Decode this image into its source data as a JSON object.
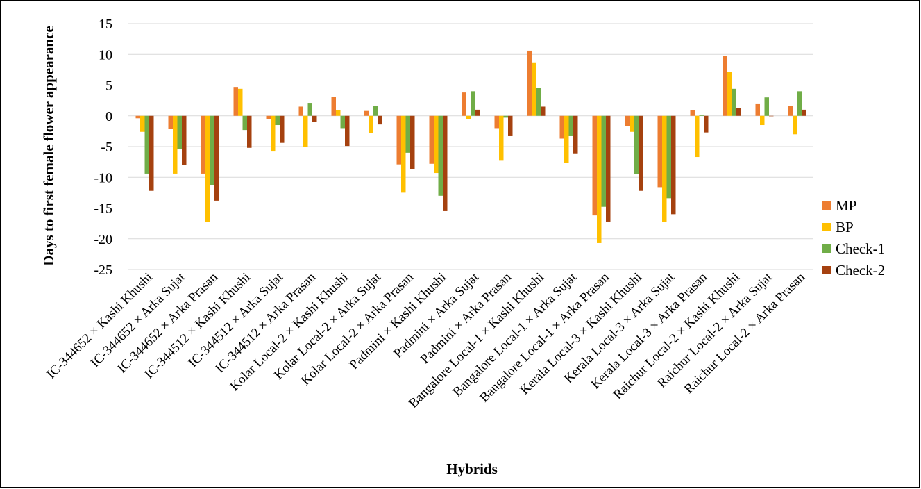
{
  "chart_data": {
    "type": "bar",
    "title": "",
    "xlabel": "Hybrids",
    "ylabel": "Days to first female flower appearance",
    "ylim": [
      -25,
      15
    ],
    "yticks": [
      15,
      10,
      5,
      0,
      -5,
      -10,
      -15,
      -20,
      -25
    ],
    "grid": true,
    "legend_position": "right",
    "categories": [
      "IC-344652 × Kashi Khushi",
      "IC-344652 × Arka Sujat",
      "IC-344652 × Arka Prasan",
      "IC-344512 × Kashi Khushi",
      "IC-344512 × Arka Sujat",
      "IC-344512 × Arka Prasan",
      "Kolar Local-2 × Kashi Khushi",
      "Kolar Local-2 × Arka Sujat",
      "Kolar Local-2 × Arka Prasan",
      "Padmini × Kashi Khushi",
      "Padmini × Arka Sujat",
      "Padmini × Arka Prasan",
      "Bangalore Local-1 × Kashi Khushi",
      "Bangalore Local-1 × Arka Sujat",
      "Bangalore Local-1 × Arka Prasan",
      "Kerala Local-3 × Kashi Khushi",
      "Kerala Local-3 × Arka Sujat",
      "Kerala Local-3 × Arka Prasan",
      "Raichur Local-2 × Kashi Khushi",
      "Raichur Local-2 × Arka Sujat",
      "Raichur Local-2 × Arka Prasan"
    ],
    "series": [
      {
        "name": "MP",
        "color": "#ED7D31",
        "values": [
          -0.4,
          -2.1,
          -9.4,
          4.7,
          -0.5,
          1.5,
          3.1,
          0.8,
          -7.9,
          -7.8,
          3.8,
          -2.0,
          10.6,
          -3.7,
          -16.2,
          -1.7,
          -11.6,
          0.9,
          9.7,
          1.9,
          1.6
        ]
      },
      {
        "name": "BP",
        "color": "#FFC000",
        "values": [
          -2.6,
          -9.4,
          -17.3,
          4.4,
          -5.8,
          -5.0,
          0.9,
          -2.8,
          -12.5,
          -9.3,
          -0.5,
          -7.3,
          8.7,
          -7.6,
          -20.7,
          -2.6,
          -17.3,
          -6.7,
          7.1,
          -1.5,
          -3.0
        ]
      },
      {
        "name": "Check-1",
        "color": "#70AD47",
        "values": [
          -9.4,
          -5.4,
          -11.3,
          -2.3,
          -1.5,
          2.0,
          -2.0,
          1.6,
          -6.0,
          -13.0,
          4.0,
          -0.3,
          4.5,
          -3.3,
          -14.8,
          -9.5,
          -13.4,
          0.2,
          4.4,
          3.0,
          4.0
        ]
      },
      {
        "name": "Check-2",
        "color": "#A5410F",
        "values": [
          -12.2,
          -8.0,
          -13.8,
          -5.2,
          -4.4,
          -1.0,
          -4.9,
          -1.4,
          -8.7,
          -15.5,
          1.0,
          -3.3,
          1.5,
          -6.1,
          -17.2,
          -12.2,
          -16.0,
          -2.7,
          1.3,
          0.0,
          1.0
        ]
      }
    ]
  }
}
